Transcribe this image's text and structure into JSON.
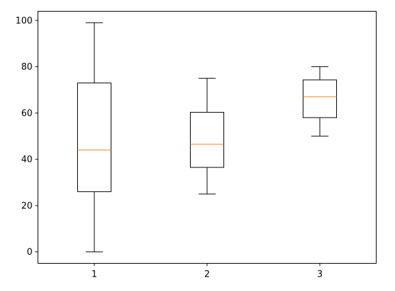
{
  "chart_data": {
    "type": "box",
    "categories": [
      "1",
      "2",
      "3"
    ],
    "boxes": [
      {
        "label": "1",
        "whisker_low": 0,
        "q1": 26,
        "median": 44,
        "q3": 73,
        "whisker_high": 99
      },
      {
        "label": "2",
        "whisker_low": 25,
        "q1": 36.5,
        "median": 46.5,
        "q3": 60.3,
        "whisker_high": 75
      },
      {
        "label": "3",
        "whisker_low": 50,
        "q1": 58,
        "median": 67,
        "q3": 74.3,
        "whisker_high": 80
      }
    ],
    "y_ticks": [
      0,
      20,
      40,
      60,
      80,
      100
    ],
    "ylim": [
      -4.95,
      103.95
    ],
    "xlim": [
      0.5,
      3.5
    ],
    "title": "",
    "xlabel": "",
    "ylabel": "",
    "grid": false,
    "colors": {
      "box": "#000000",
      "median": "#ff7f0e",
      "axes": "#000000",
      "background": "#ffffff"
    }
  }
}
